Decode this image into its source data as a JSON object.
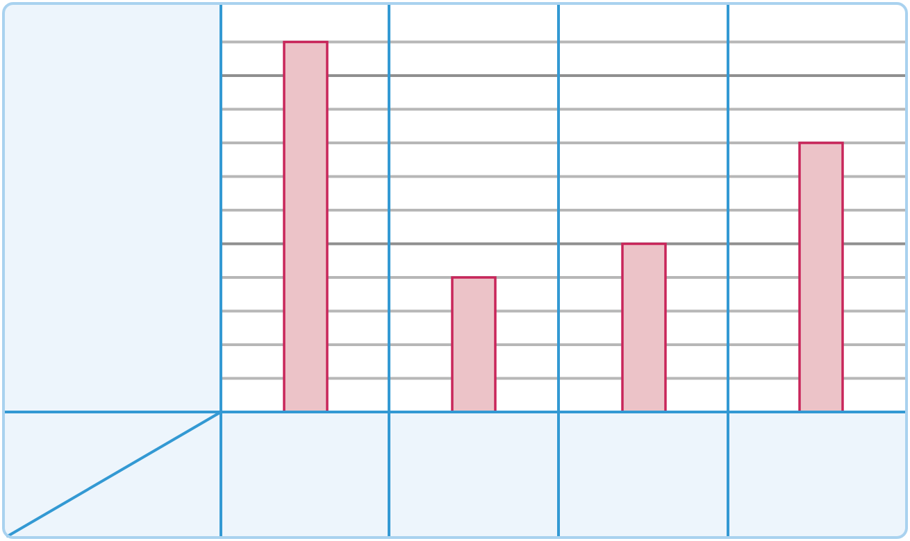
{
  "chart_data": {
    "type": "bar",
    "categories": [
      "",
      "",
      "",
      ""
    ],
    "values": [
      11,
      4,
      5,
      8
    ],
    "ylim": [
      0,
      11
    ],
    "grid": true,
    "major_gridlines_at": [
      5,
      10
    ],
    "title": "",
    "xlabel": "",
    "ylabel": ""
  },
  "colors": {
    "frame_border": "#a9d2ef",
    "panel_fill": "#edf5fc",
    "axis_blue": "#3399d3",
    "grid_minor": "#b7b7b7",
    "grid_major": "#8f8f8f",
    "bar_fill": "#ecc3c8",
    "bar_stroke": "#c8265a",
    "background": "#ffffff"
  }
}
